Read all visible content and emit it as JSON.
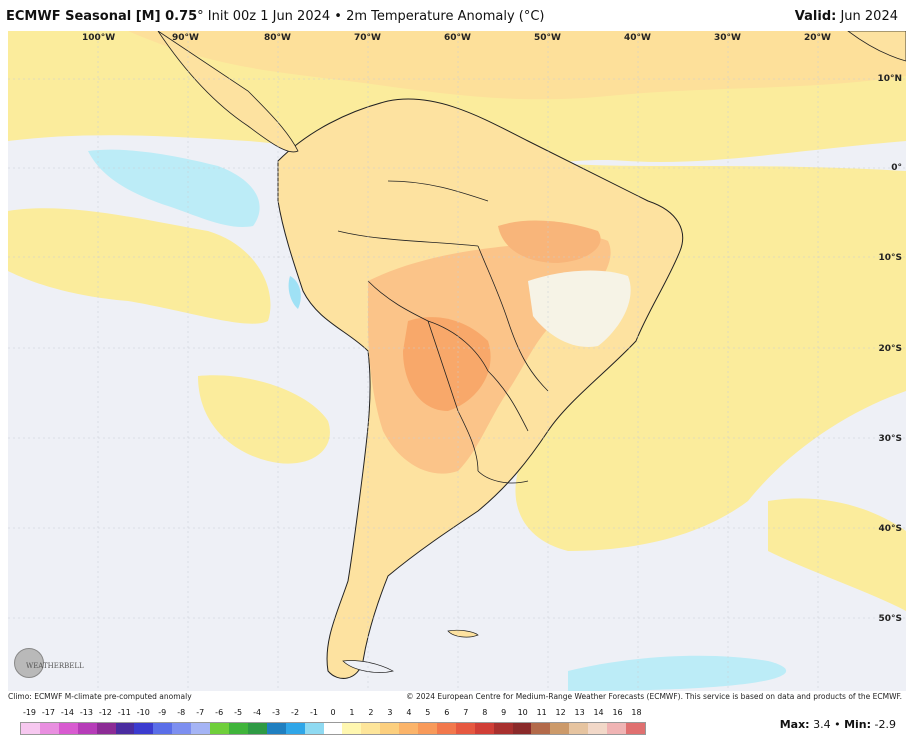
{
  "header": {
    "title_bold": "ECMWF Seasonal [M] 0.75",
    "title_rest": "° Init 00z 1 Jun 2024 • 2m Temperature Anomaly (°C)",
    "valid_label": "Valid:",
    "valid_value": "Jun 2024"
  },
  "map": {
    "lon_labels": [
      "100°W",
      "90°W",
      "80°W",
      "70°W",
      "60°W",
      "50°W",
      "40°W",
      "30°W",
      "20°W"
    ],
    "lat_labels": [
      "10°N",
      "0°",
      "10°S",
      "20°S",
      "30°S",
      "40°S",
      "50°S"
    ]
  },
  "footer": {
    "climo": "Climo: ECMWF M-climate pre-computed anomaly",
    "copyright": "© 2024 European Centre for Medium-Range Weather Forecasts (ECMWF). This service is based on data and products of the ECMWF.",
    "logo": "WEATHERBELL"
  },
  "scale": {
    "labels": [
      "-19",
      "-17",
      "-14",
      "-13",
      "-12",
      "-11",
      "-10",
      "-9",
      "-8",
      "-7",
      "-6",
      "-5",
      "-4",
      "-3",
      "-2",
      "-1",
      "0",
      "1",
      "2",
      "3",
      "4",
      "5",
      "6",
      "7",
      "8",
      "9",
      "10",
      "11",
      "12",
      "13",
      "14",
      "16",
      "18"
    ],
    "colors": [
      "#f7c8f0",
      "#e98fe0",
      "#d85bd0",
      "#b63cb8",
      "#8c2b95",
      "#4a2ca0",
      "#3b3bcf",
      "#5a6ee8",
      "#7d8ff0",
      "#a5b4f5",
      "#6fcf3a",
      "#3fb43a",
      "#2e9a44",
      "#1f7fc0",
      "#2fa6e8",
      "#8fdaf2",
      "#ffffff",
      "#fff7b0",
      "#fde59a",
      "#fccf7e",
      "#fbb46a",
      "#f89a5a",
      "#f2784c",
      "#e65840",
      "#d03e36",
      "#a8302e",
      "#8a2a2a",
      "#b36a4a",
      "#cc9a6a",
      "#e6c4a0",
      "#f2d8c8",
      "#f0b4b4",
      "#e07070"
    ]
  },
  "maxmin": {
    "max_label": "Max:",
    "max_value": "3.4",
    "min_label": "Min:",
    "min_value": "-2.9"
  }
}
